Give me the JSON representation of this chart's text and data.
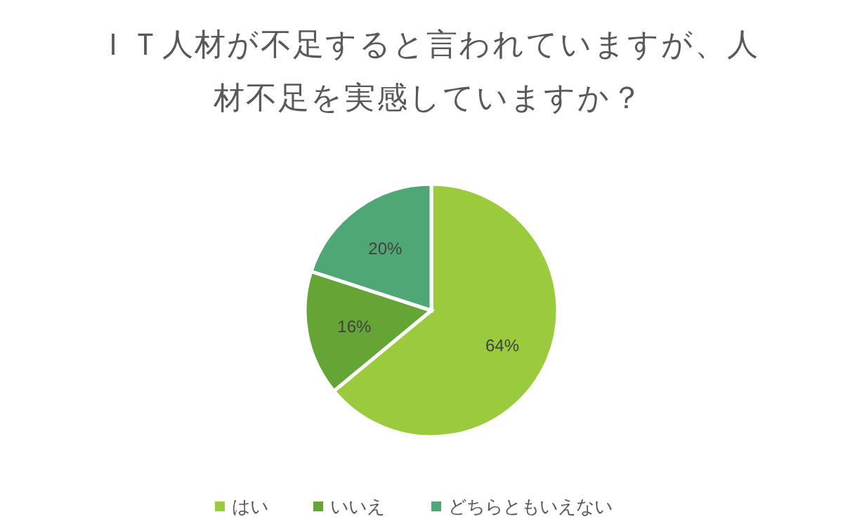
{
  "chart_data": {
    "type": "pie",
    "title": "ＩＴ人材が不足すると言われていますが、人材不足を実感していますか？",
    "categories": [
      "はい",
      "いいえ",
      "どちらともいえない"
    ],
    "values": [
      64,
      16,
      20
    ],
    "colors": [
      "#9acb3c",
      "#64a535",
      "#4ea774"
    ],
    "value_labels": [
      "64%",
      "16%",
      "20%"
    ],
    "legend": "bottom"
  }
}
